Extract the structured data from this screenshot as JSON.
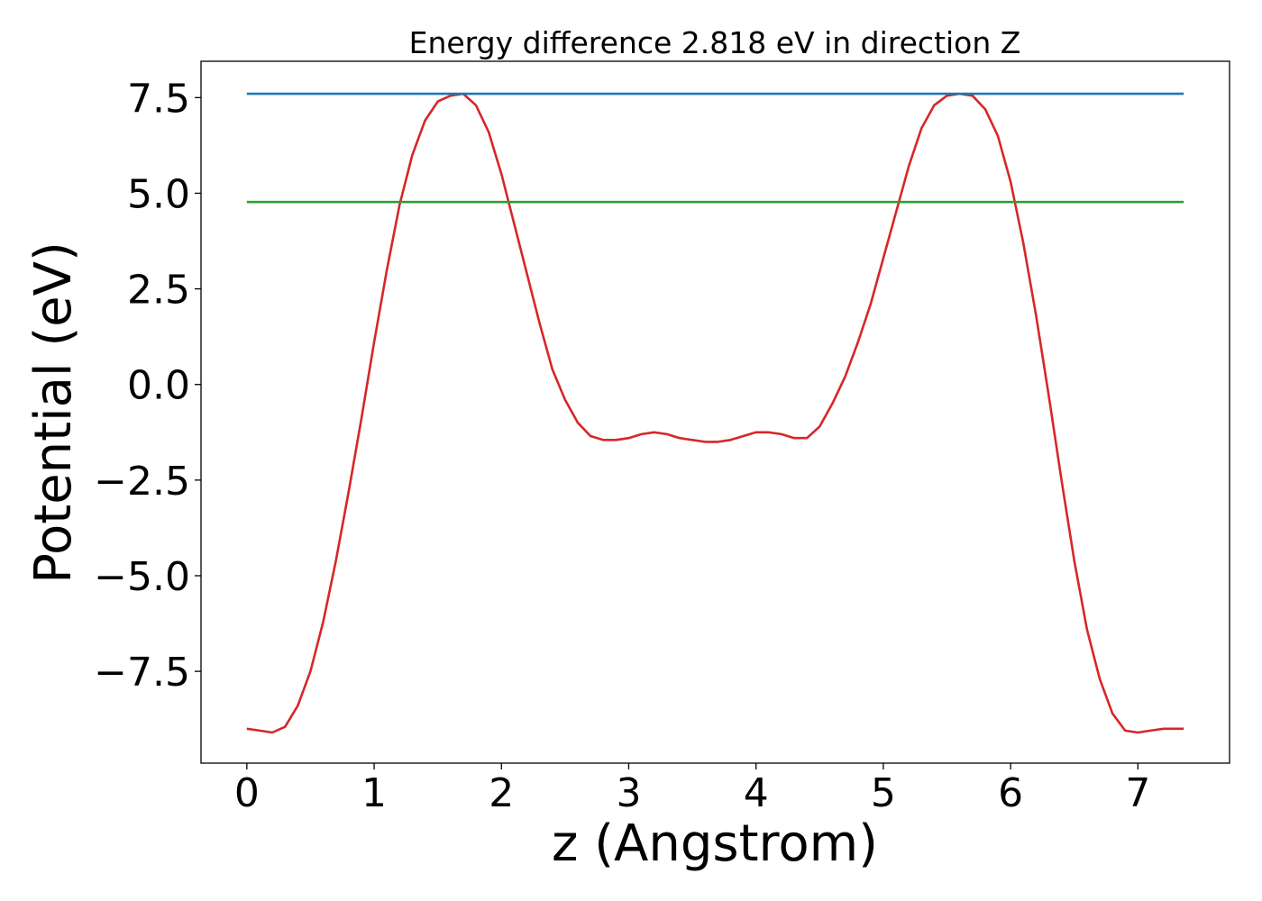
{
  "chart_data": {
    "type": "line",
    "title": "Energy difference 2.818 eV in direction Z",
    "xlabel": "z (Angstrom)",
    "ylabel": "Potential (eV)",
    "xlim": [
      -0.36,
      7.72
    ],
    "ylim": [
      -9.9,
      8.45
    ],
    "xticks": [
      0,
      1,
      2,
      3,
      4,
      5,
      6,
      7
    ],
    "xtick_labels": [
      "0",
      "1",
      "2",
      "3",
      "4",
      "5",
      "6",
      "7"
    ],
    "yticks": [
      -7.5,
      -5.0,
      -2.5,
      0.0,
      2.5,
      5.0,
      7.5
    ],
    "ytick_labels": [
      "−7.5",
      "−5.0",
      "−2.5",
      "0.0",
      "2.5",
      "5.0",
      "7.5"
    ],
    "grid": false,
    "legend": "none",
    "series": [
      {
        "color": "#d62728",
        "x": [
          0,
          0.1,
          0.2,
          0.3,
          0.4,
          0.5,
          0.6,
          0.7,
          0.8,
          0.9,
          1.0,
          1.1,
          1.2,
          1.3,
          1.4,
          1.5,
          1.6,
          1.7,
          1.8,
          1.9,
          2.0,
          2.1,
          2.2,
          2.3,
          2.4,
          2.5,
          2.6,
          2.7,
          2.8,
          2.9,
          3.0,
          3.1,
          3.2,
          3.3,
          3.4,
          3.5,
          3.6,
          3.7,
          3.8,
          3.9,
          4.0,
          4.1,
          4.2,
          4.3,
          4.4,
          4.5,
          4.6,
          4.7,
          4.8,
          4.9,
          5.0,
          5.1,
          5.2,
          5.3,
          5.4,
          5.5,
          5.6,
          5.7,
          5.8,
          5.9,
          6.0,
          6.1,
          6.2,
          6.3,
          6.4,
          6.5,
          6.6,
          6.7,
          6.8,
          6.9,
          7.0,
          7.1,
          7.2,
          7.3,
          7.36
        ],
        "y": [
          -9.0,
          -9.05,
          -9.1,
          -8.95,
          -8.4,
          -7.5,
          -6.2,
          -4.6,
          -2.8,
          -0.9,
          1.1,
          3.0,
          4.7,
          6.0,
          6.9,
          7.4,
          7.55,
          7.6,
          7.3,
          6.6,
          5.5,
          4.2,
          2.9,
          1.6,
          0.4,
          -0.4,
          -1.0,
          -1.35,
          -1.45,
          -1.45,
          -1.4,
          -1.3,
          -1.25,
          -1.3,
          -1.4,
          -1.45,
          -1.5,
          -1.5,
          -1.45,
          -1.35,
          -1.25,
          -1.25,
          -1.3,
          -1.4,
          -1.4,
          -1.1,
          -0.5,
          0.2,
          1.1,
          2.1,
          3.3,
          4.5,
          5.7,
          6.7,
          7.3,
          7.55,
          7.6,
          7.55,
          7.2,
          6.5,
          5.3,
          3.7,
          1.8,
          -0.3,
          -2.5,
          -4.6,
          -6.4,
          -7.7,
          -8.6,
          -9.05,
          -9.1,
          -9.05,
          -9.0,
          -9.0,
          -9.0
        ]
      },
      {
        "color": "#1f77b4",
        "x": [
          0,
          7.36
        ],
        "y": [
          7.6,
          7.6
        ]
      },
      {
        "color": "#2ca02c",
        "x": [
          0,
          7.36
        ],
        "y": [
          4.77,
          4.77
        ]
      }
    ]
  }
}
